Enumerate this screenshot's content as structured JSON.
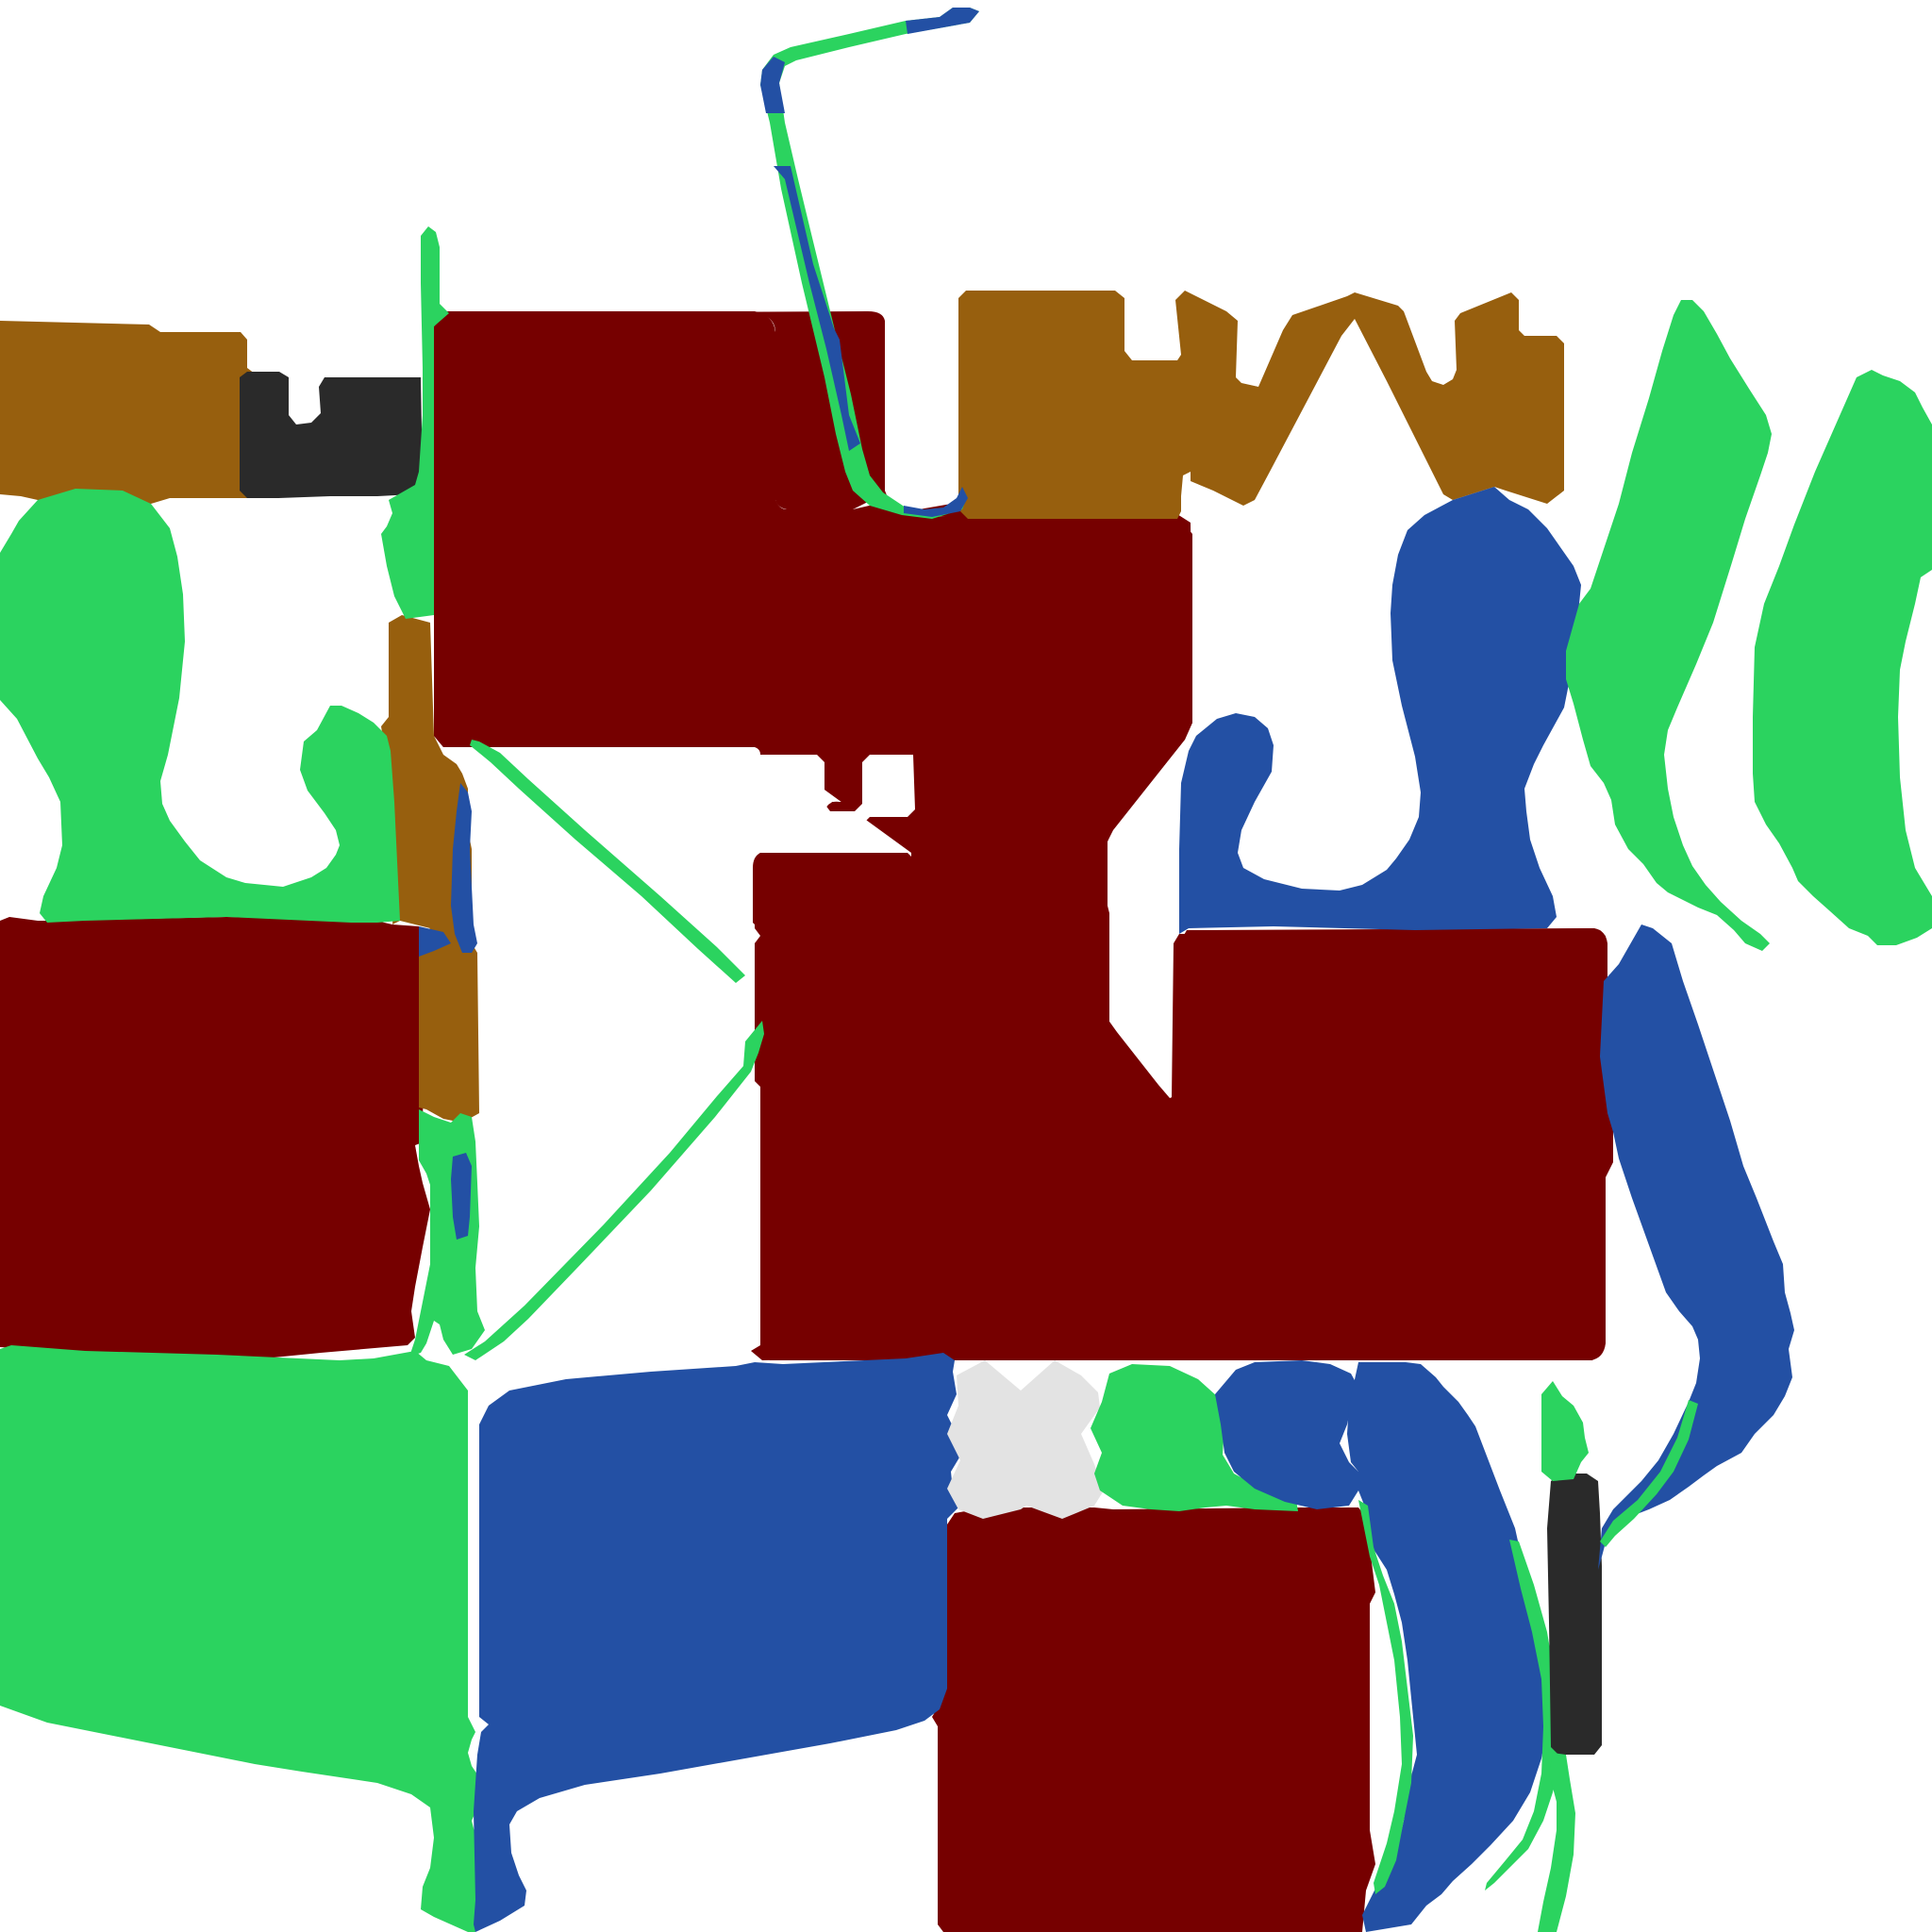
{
  "palette": {
    "background": "#ffffff",
    "dark_red": "#760000",
    "brown": "#975f0e",
    "near_black": "#2a2a2a",
    "green": "#2bd35f",
    "blue": "#2350a4",
    "light_gray": "#e3e3e3"
  },
  "icons": {
    "plus_glyph": "plus-icon",
    "cross_glyph": "x-icon"
  }
}
